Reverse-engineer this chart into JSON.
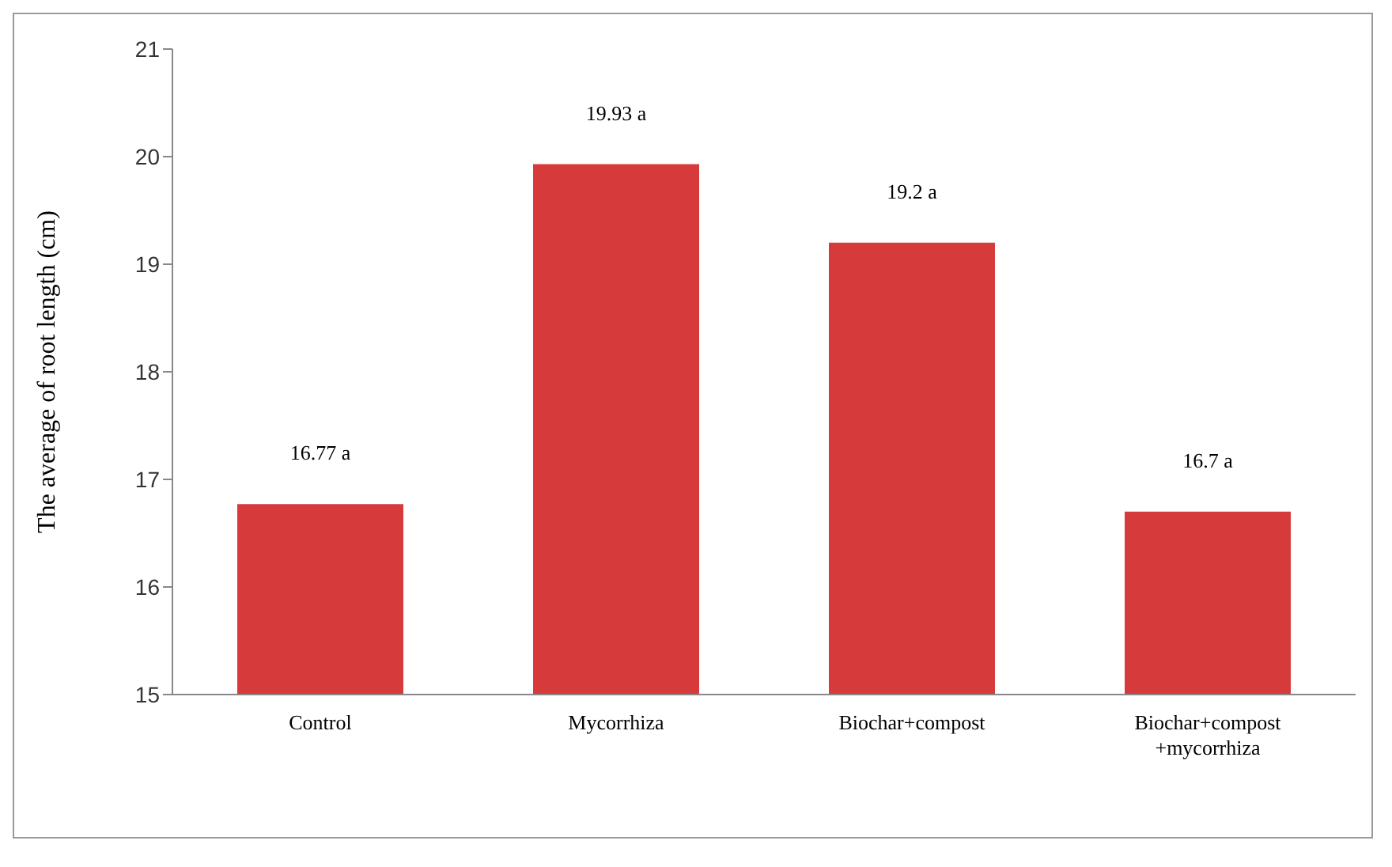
{
  "chart_data": {
    "type": "bar",
    "ylabel": "The average of root length (cm)",
    "categories": [
      "Control",
      "Mycorrhiza",
      "Biochar+compost",
      "Biochar+compost +mycorrhiza"
    ],
    "values": [
      16.77,
      19.93,
      19.2,
      16.7
    ],
    "value_labels": [
      "16.77 a",
      "19.93 a",
      "19.2 a",
      "16.7 a"
    ],
    "color": "#d63a3a",
    "ylim": [
      15,
      21
    ],
    "yticks": [
      15,
      16,
      17,
      18,
      19,
      20,
      21
    ],
    "grid": false,
    "legend": false
  }
}
